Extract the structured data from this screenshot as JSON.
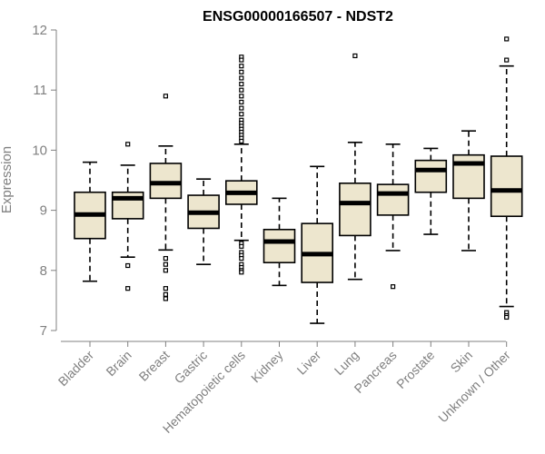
{
  "chart_data": {
    "type": "boxplot",
    "title": "ENSG00000166507 - NDST2",
    "xlabel": "",
    "ylabel": "Expression",
    "ylim": [
      7,
      12
    ],
    "yticks": [
      "7",
      "8",
      "9",
      "10",
      "11",
      "12"
    ],
    "grid": false,
    "colors": {
      "box_fill": "#EDE6CE",
      "stroke": "#000000",
      "axis_text": "#808080"
    },
    "categories": [
      "Bladder",
      "Brain",
      "Breast",
      "Gastric",
      "Hematopoietic cells",
      "Kidney",
      "Liver",
      "Lung",
      "Pancreas",
      "Prostate",
      "Skin",
      "Unknown / Other"
    ],
    "boxes": [
      {
        "min": 7.82,
        "q1": 8.53,
        "median": 8.93,
        "q3": 9.3,
        "max": 9.8,
        "outliers": []
      },
      {
        "min": 8.22,
        "q1": 8.86,
        "median": 9.2,
        "q3": 9.3,
        "max": 9.75,
        "outliers": [
          10.1,
          8.08,
          7.7
        ]
      },
      {
        "min": 8.34,
        "q1": 9.2,
        "median": 9.45,
        "q3": 9.78,
        "max": 10.07,
        "outliers": [
          10.9,
          8.2,
          8.1,
          8.0,
          7.7,
          7.6,
          7.53
        ]
      },
      {
        "min": 8.1,
        "q1": 8.7,
        "median": 8.96,
        "q3": 9.25,
        "max": 9.52,
        "outliers": []
      },
      {
        "min": 8.5,
        "q1": 9.1,
        "median": 9.29,
        "q3": 9.49,
        "max": 10.1,
        "outliers": [
          11.55,
          11.5,
          11.4,
          11.3,
          11.2,
          11.1,
          11.0,
          10.9,
          10.8,
          10.7,
          10.6,
          10.5,
          10.45,
          10.4,
          10.35,
          10.3,
          10.25,
          10.2,
          10.15,
          8.45,
          8.4,
          8.3,
          8.25,
          8.2,
          8.1,
          8.05,
          8.0,
          7.97
        ]
      },
      {
        "min": 7.75,
        "q1": 8.13,
        "median": 8.48,
        "q3": 8.68,
        "max": 9.2,
        "outliers": []
      },
      {
        "min": 7.12,
        "q1": 7.8,
        "median": 8.27,
        "q3": 8.78,
        "max": 9.73,
        "outliers": []
      },
      {
        "min": 7.85,
        "q1": 8.58,
        "median": 9.12,
        "q3": 9.45,
        "max": 10.13,
        "outliers": [
          11.57
        ]
      },
      {
        "min": 8.33,
        "q1": 8.92,
        "median": 9.28,
        "q3": 9.43,
        "max": 10.1,
        "outliers": [
          7.73
        ]
      },
      {
        "min": 8.6,
        "q1": 9.3,
        "median": 9.67,
        "q3": 9.83,
        "max": 10.03,
        "outliers": []
      },
      {
        "min": 8.33,
        "q1": 9.2,
        "median": 9.78,
        "q3": 9.92,
        "max": 10.32,
        "outliers": []
      },
      {
        "min": 7.4,
        "q1": 8.9,
        "median": 9.33,
        "q3": 9.9,
        "max": 11.4,
        "outliers": [
          11.85,
          11.5,
          7.3,
          7.25,
          7.22
        ]
      }
    ]
  }
}
